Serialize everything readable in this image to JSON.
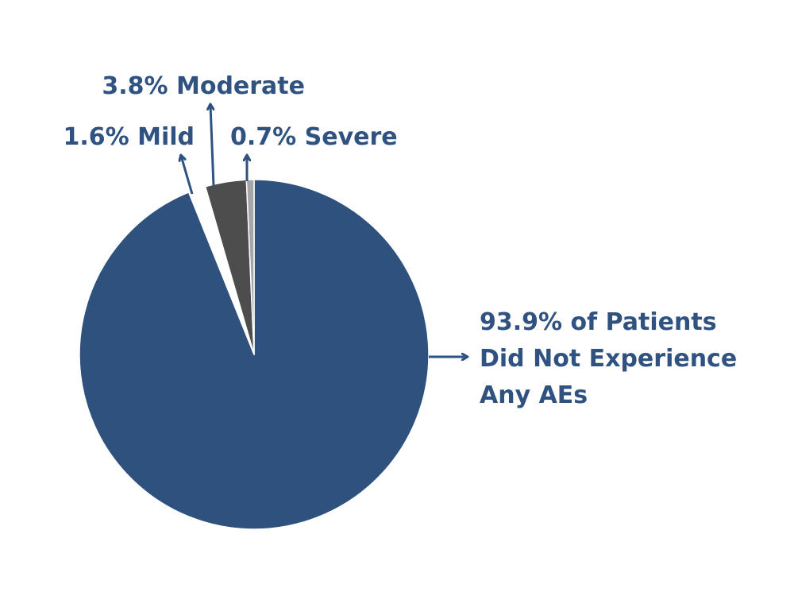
{
  "chart_data": {
    "type": "pie",
    "colors": {
      "text": "#2f5280",
      "arrow": "#2f5280",
      "slice_outline": "#ffffff"
    },
    "slices": [
      {
        "name": "none",
        "value": 93.9,
        "color": "#2e527d",
        "label_lines": [
          "93.9% of Patients",
          "Did Not Experience",
          "Any AEs"
        ]
      },
      {
        "name": "mild",
        "value": 1.6,
        "color": "#ffffff",
        "label_lines": [
          "1.6% Mild"
        ]
      },
      {
        "name": "moderate",
        "value": 3.8,
        "color": "#4d4d4d",
        "label_lines": [
          "3.8% Moderate"
        ]
      },
      {
        "name": "severe",
        "value": 0.7,
        "color": "#a6a6a6",
        "label_lines": [
          "0.7% Severe"
        ]
      }
    ]
  }
}
